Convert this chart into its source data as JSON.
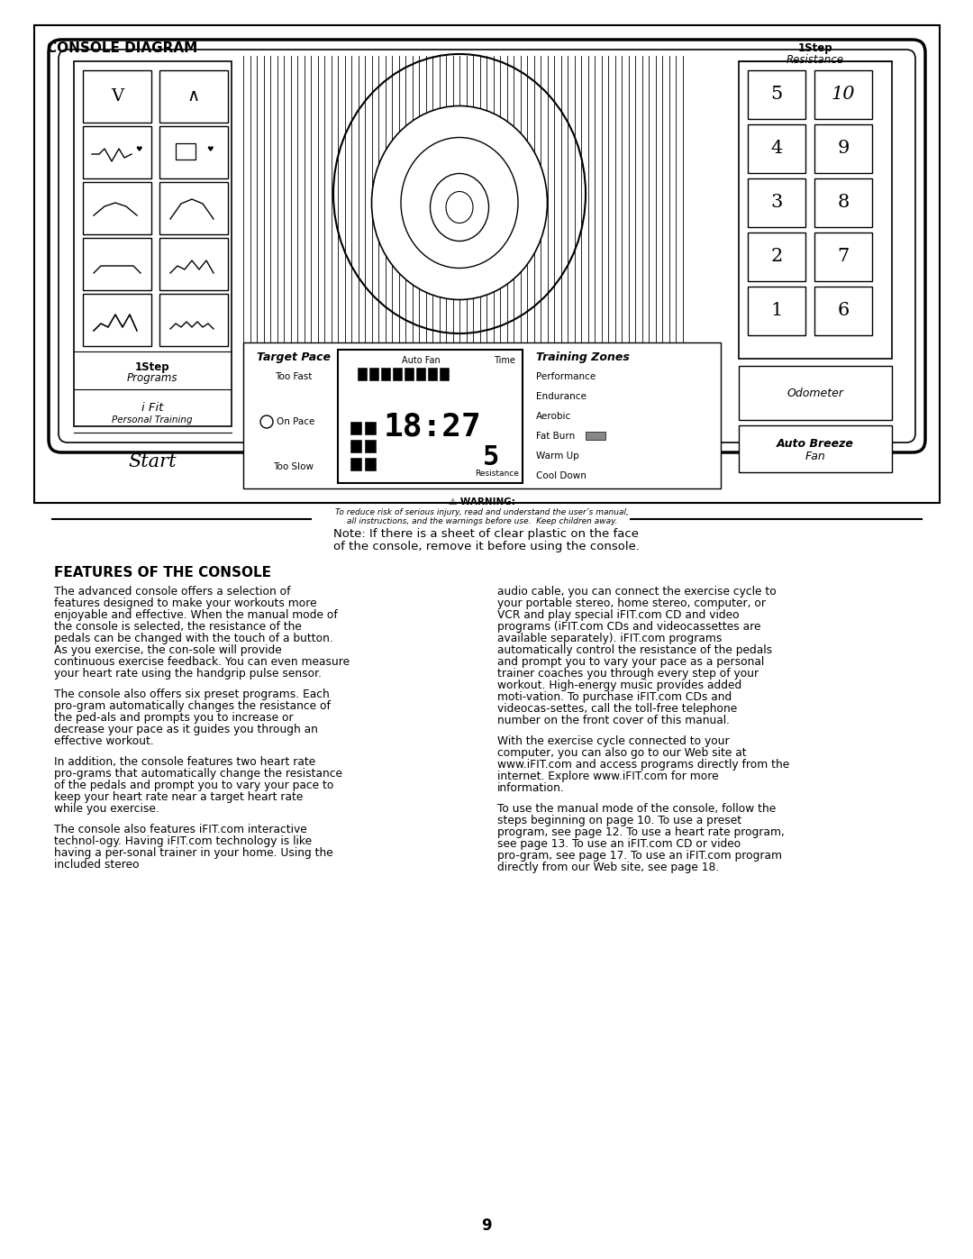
{
  "page_bg": "#ffffff",
  "title": "CONSOLE DIAGRAM",
  "section_title": "FEATURES OF THE CONSOLE",
  "note_text_line1": "Note: If there is a sheet of clear plastic on the face",
  "note_text_line2": "of the console, remove it before using the console.",
  "page_number": "9",
  "warning_line1": "⚠ WARNING:",
  "warning_line2": "To reduce risk of serious injury, read and understand the user’s manual,",
  "warning_line3": "all instructions, and the warnings before use.  Keep children away.",
  "training_zones": [
    "Performance",
    "Endurance",
    "Aerobic",
    "Fat Burn",
    "Warm Up",
    "Cool Down"
  ],
  "display_time": "18:27",
  "display_resistance": "5",
  "num_buttons": [
    [
      "5",
      "10"
    ],
    [
      "4",
      "9"
    ],
    [
      "3",
      "8"
    ],
    [
      "2",
      "7"
    ],
    [
      "1",
      "6"
    ]
  ],
  "left_para1": "The advanced console offers a selection of features designed to make your workouts more enjoyable and effective. When the manual mode of the console is selected, the resistance of the pedals can be changed with the touch of a button. As you exercise, the con-sole will provide continuous exercise feedback. You can even measure your heart rate using the handgrip pulse sensor.",
  "left_para2": "The console also offers six preset programs. Each pro-gram automatically changes the resistance of the ped-als and prompts you to increase or decrease your pace as it guides you through an effective workout.",
  "left_para3": "In addition, the console features two heart rate pro-grams that automatically change the resistance of the pedals and prompt you to vary your pace to keep your heart rate near a target heart rate while you exercise.",
  "left_para4": "The console also features iFIT.com interactive technol-ogy. Having iFIT.com technology is like having a per-sonal trainer in your home. Using the included stereo",
  "right_para1_normal": "audio cable, you can connect the exercise cycle to your portable stereo, home stereo, computer, or VCR and play special iFIT.com CD and video programs (iFIT.com CDs and videocassettes are available separately). iFIT.com programs automatically control the resistance of the pedals and prompt you to vary your pace as a personal trainer coaches you through every step of your workout. High-energy music provides added moti-vation. ",
  "right_para1_bold": "To purchase iFIT.com CDs and videocas-settes, call the toll-free telephone number on the front cover of this manual.",
  "right_para2_normal": "With the exercise cycle connected to your computer, you can also go to our Web site at www.iFIT.com and access programs directly from the internet. ",
  "right_para2_bold": "Explore www.iFIT.com for more information.",
  "right_para3_bold1": "To use the manual mode of the console",
  "right_para3_normal1": ", follow the steps beginning on page 10. ",
  "right_para3_bold2": "To use a preset program",
  "right_para3_normal2": ", see page 12. ",
  "right_para3_bold3": "To use a heart rate program",
  "right_para3_normal3": ", see page 13. ",
  "right_para3_bold4": "To use an iFIT.com CD or video pro-gram",
  "right_para3_normal4": ", see page 17. ",
  "right_para3_bold5": "To use an iFIT.com program directly from our Web site",
  "right_para3_normal5": ", see page 18."
}
